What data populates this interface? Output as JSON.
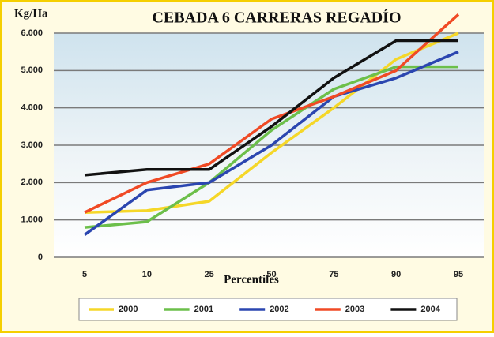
{
  "chart_data": {
    "type": "line",
    "title": "CEBADA 6 CARRERAS REGADÍO",
    "y_label": "Kg/Ha",
    "x_label": "Percentiles",
    "categories": [
      "5",
      "10",
      "25",
      "50",
      "75",
      "90",
      "95"
    ],
    "series": [
      {
        "name": "2000",
        "color": "#f5d728",
        "values": [
          1200,
          1250,
          1500,
          2800,
          4000,
          5300,
          6000
        ]
      },
      {
        "name": "2001",
        "color": "#6cbf4a",
        "values": [
          800,
          950,
          2000,
          3400,
          4500,
          5100,
          5100
        ]
      },
      {
        "name": "2002",
        "color": "#2b46b0",
        "values": [
          600,
          1800,
          2000,
          3000,
          4300,
          4800,
          5500
        ]
      },
      {
        "name": "2003",
        "color": "#f04a25",
        "values": [
          1200,
          2000,
          2500,
          3700,
          4300,
          5000,
          6500
        ]
      },
      {
        "name": "2004",
        "color": "#111111",
        "values": [
          2200,
          2350,
          2350,
          3500,
          4800,
          5800,
          5800
        ]
      }
    ],
    "ylim": [
      0,
      6000
    ],
    "yticks": [
      0,
      {
        "value": 1000,
        "label": "1.000"
      },
      {
        "value": 2000,
        "label": "2.000"
      },
      {
        "value": 3000,
        "label": "3.000"
      },
      {
        "value": 4000,
        "label": "4.000"
      },
      {
        "value": 5000,
        "label": "5.000"
      },
      {
        "value": 6000,
        "label": "6.000"
      }
    ],
    "grid": true,
    "legend": "bottom"
  }
}
